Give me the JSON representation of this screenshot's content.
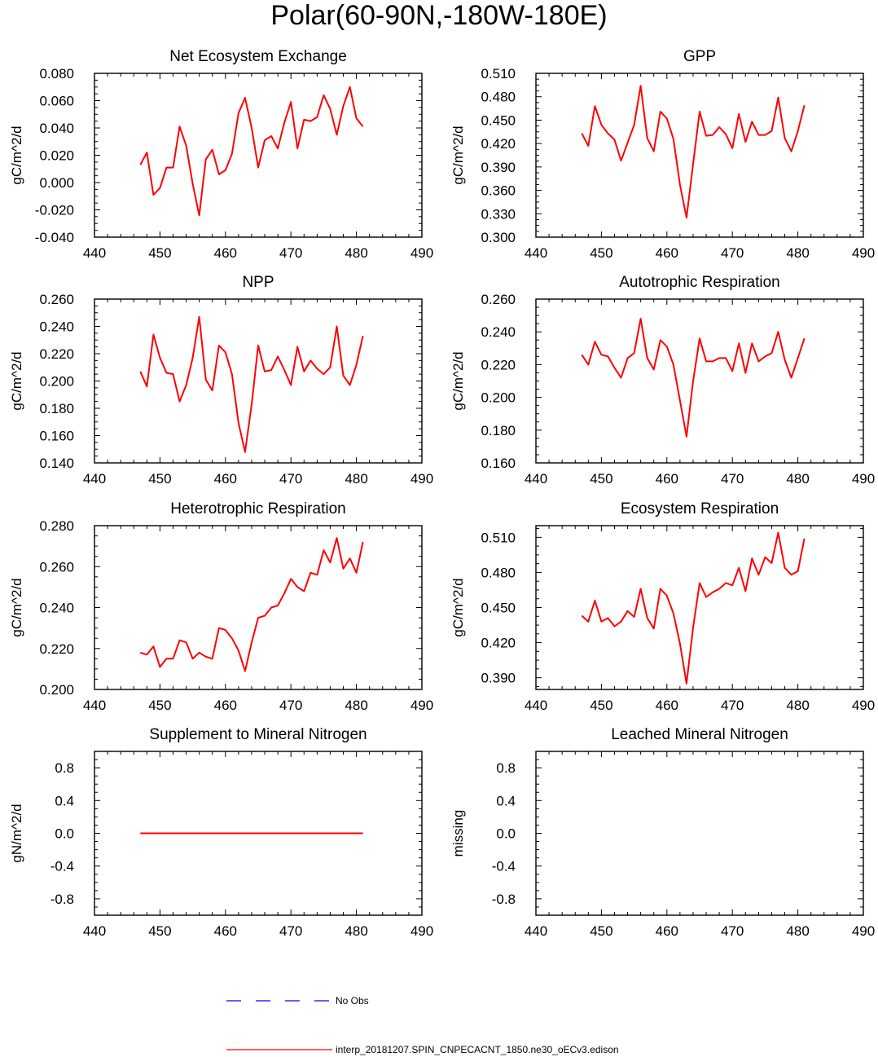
{
  "title": "Polar(60-90N,-180W-180E)",
  "colors": {
    "model_line": "#ff0000",
    "obs_line": "#0000ff",
    "axis": "#000000"
  },
  "legend": {
    "obs_label": "No Obs",
    "model_label": "interp_20181207.SPIN_CNPECACNT_1850.ne30_oECv3.edison"
  },
  "chart_data": [
    {
      "type": "line",
      "title": "Net Ecosystem Exchange",
      "ylabel": "gC/m^2/d",
      "xlabel": "",
      "xlim": [
        440,
        490
      ],
      "ylim": [
        -0.04,
        0.08
      ],
      "xticks": [
        "440",
        "450",
        "460",
        "470",
        "480",
        "490"
      ],
      "yticks": [
        "-0.040",
        "-0.020",
        "0.000",
        "0.020",
        "0.040",
        "0.060",
        "0.080"
      ],
      "ytick_values": [
        -0.04,
        -0.02,
        0.0,
        0.02,
        0.04,
        0.06,
        0.08
      ],
      "x": [
        447,
        448,
        449,
        450,
        451,
        452,
        453,
        454,
        455,
        456,
        457,
        458,
        459,
        460,
        461,
        462,
        463,
        464,
        465,
        466,
        467,
        468,
        469,
        470,
        471,
        472,
        473,
        474,
        475,
        476,
        477,
        478,
        479,
        480,
        481
      ],
      "series": [
        {
          "name": "interp_20181207.SPIN_CNPECACNT_1850.ne30_oECv3.edison",
          "values": [
            0.013,
            0.022,
            -0.009,
            -0.004,
            0.011,
            0.011,
            0.041,
            0.027,
            -0.001,
            -0.024,
            0.017,
            0.024,
            0.006,
            0.009,
            0.021,
            0.051,
            0.062,
            0.04,
            0.011,
            0.031,
            0.034,
            0.025,
            0.044,
            0.059,
            0.025,
            0.046,
            0.045,
            0.048,
            0.064,
            0.054,
            0.035,
            0.056,
            0.07,
            0.047,
            0.041
          ]
        }
      ]
    },
    {
      "type": "line",
      "title": "GPP",
      "ylabel": "gC/m^2/d",
      "xlabel": "",
      "xlim": [
        440,
        490
      ],
      "ylim": [
        0.3,
        0.51
      ],
      "xticks": [
        "440",
        "450",
        "460",
        "470",
        "480",
        "490"
      ],
      "yticks": [
        "0.300",
        "0.330",
        "0.360",
        "0.390",
        "0.420",
        "0.450",
        "0.480",
        "0.510"
      ],
      "ytick_values": [
        0.3,
        0.33,
        0.36,
        0.39,
        0.42,
        0.45,
        0.48,
        0.51
      ],
      "x": [
        447,
        448,
        449,
        450,
        451,
        452,
        453,
        454,
        455,
        456,
        457,
        458,
        459,
        460,
        461,
        462,
        463,
        464,
        465,
        466,
        467,
        468,
        469,
        470,
        471,
        472,
        473,
        474,
        475,
        476,
        477,
        478,
        479,
        480,
        481
      ],
      "series": [
        {
          "name": "interp_20181207.SPIN_CNPECACNT_1850.ne30_oECv3.edison",
          "values": [
            0.433,
            0.417,
            0.468,
            0.444,
            0.433,
            0.425,
            0.398,
            0.421,
            0.444,
            0.494,
            0.427,
            0.41,
            0.461,
            0.452,
            0.426,
            0.367,
            0.325,
            0.394,
            0.461,
            0.43,
            0.431,
            0.441,
            0.432,
            0.414,
            0.458,
            0.422,
            0.448,
            0.431,
            0.431,
            0.436,
            0.479,
            0.427,
            0.41,
            0.436,
            0.469
          ]
        }
      ]
    },
    {
      "type": "line",
      "title": "NPP",
      "ylabel": "gC/m^2/d",
      "xlabel": "",
      "xlim": [
        440,
        490
      ],
      "ylim": [
        0.14,
        0.26
      ],
      "xticks": [
        "440",
        "450",
        "460",
        "470",
        "480",
        "490"
      ],
      "yticks": [
        "0.140",
        "0.160",
        "0.180",
        "0.200",
        "0.220",
        "0.240",
        "0.260"
      ],
      "ytick_values": [
        0.14,
        0.16,
        0.18,
        0.2,
        0.22,
        0.24,
        0.26
      ],
      "x": [
        447,
        448,
        449,
        450,
        451,
        452,
        453,
        454,
        455,
        456,
        457,
        458,
        459,
        460,
        461,
        462,
        463,
        464,
        465,
        466,
        467,
        468,
        469,
        470,
        471,
        472,
        473,
        474,
        475,
        476,
        477,
        478,
        479,
        480,
        481
      ],
      "series": [
        {
          "name": "interp_20181207.SPIN_CNPECACNT_1850.ne30_oECv3.edison",
          "values": [
            0.207,
            0.196,
            0.234,
            0.217,
            0.206,
            0.205,
            0.185,
            0.197,
            0.217,
            0.247,
            0.201,
            0.193,
            0.226,
            0.221,
            0.205,
            0.169,
            0.148,
            0.183,
            0.226,
            0.207,
            0.208,
            0.218,
            0.208,
            0.197,
            0.225,
            0.207,
            0.215,
            0.209,
            0.205,
            0.21,
            0.24,
            0.204,
            0.197,
            0.212,
            0.233
          ]
        }
      ]
    },
    {
      "type": "line",
      "title": "Autotrophic Respiration",
      "ylabel": "gC/m^2/d",
      "xlabel": "",
      "xlim": [
        440,
        490
      ],
      "ylim": [
        0.16,
        0.26
      ],
      "xticks": [
        "440",
        "450",
        "460",
        "470",
        "480",
        "490"
      ],
      "yticks": [
        "0.160",
        "0.180",
        "0.200",
        "0.220",
        "0.240",
        "0.260"
      ],
      "ytick_values": [
        0.16,
        0.18,
        0.2,
        0.22,
        0.24,
        0.26
      ],
      "x": [
        447,
        448,
        449,
        450,
        451,
        452,
        453,
        454,
        455,
        456,
        457,
        458,
        459,
        460,
        461,
        462,
        463,
        464,
        465,
        466,
        467,
        468,
        469,
        470,
        471,
        472,
        473,
        474,
        475,
        476,
        477,
        478,
        479,
        480,
        481
      ],
      "series": [
        {
          "name": "interp_20181207.SPIN_CNPECACNT_1850.ne30_oECv3.edison",
          "values": [
            0.226,
            0.22,
            0.234,
            0.226,
            0.225,
            0.218,
            0.212,
            0.224,
            0.227,
            0.248,
            0.224,
            0.217,
            0.235,
            0.231,
            0.22,
            0.198,
            0.176,
            0.21,
            0.236,
            0.222,
            0.222,
            0.224,
            0.224,
            0.216,
            0.233,
            0.215,
            0.233,
            0.222,
            0.225,
            0.227,
            0.24,
            0.223,
            0.212,
            0.224,
            0.236
          ]
        }
      ]
    },
    {
      "type": "line",
      "title": "Heterotrophic Respiration",
      "ylabel": "gC/m^2/d",
      "xlabel": "",
      "xlim": [
        440,
        490
      ],
      "ylim": [
        0.2,
        0.28
      ],
      "xticks": [
        "440",
        "450",
        "460",
        "470",
        "480",
        "490"
      ],
      "yticks": [
        "0.200",
        "0.220",
        "0.240",
        "0.260",
        "0.280"
      ],
      "ytick_values": [
        0.2,
        0.22,
        0.24,
        0.26,
        0.28
      ],
      "x": [
        447,
        448,
        449,
        450,
        451,
        452,
        453,
        454,
        455,
        456,
        457,
        458,
        459,
        460,
        461,
        462,
        463,
        464,
        465,
        466,
        467,
        468,
        469,
        470,
        471,
        472,
        473,
        474,
        475,
        476,
        477,
        478,
        479,
        480,
        481
      ],
      "series": [
        {
          "name": "interp_20181207.SPIN_CNPECACNT_1850.ne30_oECv3.edison",
          "values": [
            0.218,
            0.217,
            0.221,
            0.211,
            0.215,
            0.215,
            0.224,
            0.223,
            0.215,
            0.218,
            0.216,
            0.215,
            0.23,
            0.229,
            0.225,
            0.219,
            0.209,
            0.223,
            0.235,
            0.236,
            0.24,
            0.241,
            0.247,
            0.254,
            0.25,
            0.248,
            0.257,
            0.256,
            0.268,
            0.262,
            0.274,
            0.259,
            0.264,
            0.257,
            0.272
          ]
        }
      ]
    },
    {
      "type": "line",
      "title": "Ecosystem Respiration",
      "ylabel": "gC/m^2/d",
      "xlabel": "",
      "xlim": [
        440,
        490
      ],
      "ylim": [
        0.38,
        0.52
      ],
      "xticks": [
        "440",
        "450",
        "460",
        "470",
        "480",
        "490"
      ],
      "yticks": [
        "0.390",
        "0.420",
        "0.450",
        "0.480",
        "0.510"
      ],
      "ytick_values": [
        0.39,
        0.42,
        0.45,
        0.48,
        0.51
      ],
      "x": [
        447,
        448,
        449,
        450,
        451,
        452,
        453,
        454,
        455,
        456,
        457,
        458,
        459,
        460,
        461,
        462,
        463,
        464,
        465,
        466,
        467,
        468,
        469,
        470,
        471,
        472,
        473,
        474,
        475,
        476,
        477,
        478,
        479,
        480,
        481
      ],
      "series": [
        {
          "name": "interp_20181207.SPIN_CNPECACNT_1850.ne30_oECv3.edison",
          "values": [
            0.443,
            0.438,
            0.456,
            0.438,
            0.441,
            0.434,
            0.438,
            0.447,
            0.442,
            0.466,
            0.441,
            0.432,
            0.466,
            0.46,
            0.445,
            0.419,
            0.385,
            0.433,
            0.471,
            0.459,
            0.463,
            0.466,
            0.471,
            0.469,
            0.484,
            0.464,
            0.492,
            0.478,
            0.493,
            0.488,
            0.514,
            0.484,
            0.478,
            0.481,
            0.509
          ]
        }
      ]
    },
    {
      "type": "line",
      "title": "Supplement to Mineral Nitrogen",
      "ylabel": "gN/m^2/d",
      "xlabel": "",
      "xlim": [
        440,
        490
      ],
      "ylim": [
        -1.0,
        1.0
      ],
      "xticks": [
        "440",
        "450",
        "460",
        "470",
        "480",
        "490"
      ],
      "yticks": [
        "-0.8",
        "-0.4",
        "0.0",
        "0.4",
        "0.8"
      ],
      "ytick_values": [
        -0.8,
        -0.4,
        0.0,
        0.4,
        0.8
      ],
      "x": [
        447,
        481
      ],
      "series": [
        {
          "name": "interp_20181207.SPIN_CNPECACNT_1850.ne30_oECv3.edison",
          "values": [
            0.0,
            0.0
          ]
        }
      ]
    },
    {
      "type": "line",
      "title": "Leached Mineral Nitrogen",
      "ylabel": "missing",
      "xlabel": "",
      "xlim": [
        440,
        490
      ],
      "ylim": [
        -1.0,
        1.0
      ],
      "xticks": [
        "440",
        "450",
        "460",
        "470",
        "480",
        "490"
      ],
      "yticks": [
        "-0.8",
        "-0.4",
        "0.0",
        "0.4",
        "0.8"
      ],
      "ytick_values": [
        -0.8,
        -0.4,
        0.0,
        0.4,
        0.8
      ],
      "x": [],
      "series": []
    }
  ]
}
